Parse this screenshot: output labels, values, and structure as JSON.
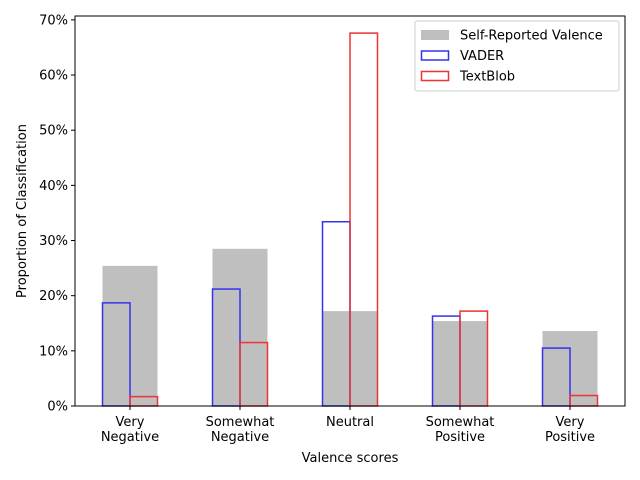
{
  "chart_data": {
    "type": "bar",
    "title": "",
    "xlabel": "Valence scores",
    "ylabel": "Proportion of Classification",
    "ylim": [
      0,
      0.707
    ],
    "y_ticks": [
      0,
      0.1,
      0.2,
      0.3,
      0.4,
      0.5,
      0.6,
      0.7
    ],
    "y_tick_labels": [
      "0%",
      "10%",
      "20%",
      "30%",
      "40%",
      "50%",
      "60%",
      "70%"
    ],
    "categories": [
      [
        "Very",
        "Negative"
      ],
      [
        "Somewhat",
        "Negative"
      ],
      [
        "Neutral"
      ],
      [
        "Somewhat",
        "Positive"
      ],
      [
        "Very",
        "Positive"
      ]
    ],
    "series": [
      {
        "name": "Self-Reported Valence",
        "style": "filled",
        "color": "#bfbfbf",
        "offset": "right",
        "values": [
          0.254,
          0.285,
          0.172,
          0.154,
          0.136
        ]
      },
      {
        "name": "VADER",
        "style": "outline",
        "color": "#3333ee",
        "offset": "left",
        "values": [
          0.187,
          0.212,
          0.334,
          0.163,
          0.105
        ]
      },
      {
        "name": "TextBlob",
        "style": "outline",
        "color": "#ee3333",
        "offset": "right",
        "values": [
          0.017,
          0.115,
          0.676,
          0.172,
          0.019
        ]
      }
    ],
    "legend": {
      "position": "top-right"
    },
    "grid": false
  }
}
